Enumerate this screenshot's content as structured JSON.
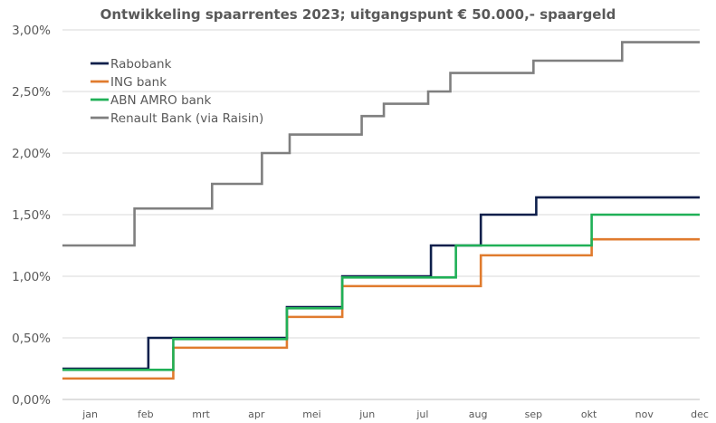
{
  "chart_data": {
    "type": "line",
    "title": "Ontwikkeling spaarrentes 2023; uitgangspunt € 50.000,- spaargeld",
    "xlabel": "",
    "ylabel": "",
    "xlim": [
      0,
      11.5
    ],
    "ylim": [
      0,
      3
    ],
    "y_ticks": [
      {
        "value": 0,
        "label": "0,00%"
      },
      {
        "value": 0.5,
        "label": "0,50%"
      },
      {
        "value": 1.0,
        "label": "1,00%"
      },
      {
        "value": 1.5,
        "label": "1,50%"
      },
      {
        "value": 2.0,
        "label": "2,00%"
      },
      {
        "value": 2.5,
        "label": "2,50%"
      },
      {
        "value": 3.0,
        "label": "3,00%"
      }
    ],
    "x_ticks": [
      {
        "value": 0.5,
        "label": "jan"
      },
      {
        "value": 1.5,
        "label": "feb"
      },
      {
        "value": 2.5,
        "label": "mrt"
      },
      {
        "value": 3.5,
        "label": "apr"
      },
      {
        "value": 4.5,
        "label": "mei"
      },
      {
        "value": 5.5,
        "label": "jun"
      },
      {
        "value": 6.5,
        "label": "jul"
      },
      {
        "value": 7.5,
        "label": "aug"
      },
      {
        "value": 8.5,
        "label": "sep"
      },
      {
        "value": 9.5,
        "label": "okt"
      },
      {
        "value": 10.5,
        "label": "nov"
      },
      {
        "value": 11.5,
        "label": "dec"
      }
    ],
    "grid": "horizontal",
    "legend_position": "top-left",
    "series": [
      {
        "name": "Rabobank",
        "color": "#0d1f4b",
        "steps": [
          [
            0,
            0.25
          ],
          [
            1.55,
            0.5
          ],
          [
            4.05,
            0.75
          ],
          [
            5.05,
            1.0
          ],
          [
            6.65,
            1.25
          ],
          [
            7.55,
            1.5
          ],
          [
            8.55,
            1.64
          ],
          [
            11.5,
            1.64
          ]
        ]
      },
      {
        "name": "ING bank",
        "color": "#e07b2e",
        "steps": [
          [
            0,
            0.17
          ],
          [
            2.0,
            0.42
          ],
          [
            4.05,
            0.67
          ],
          [
            5.05,
            0.92
          ],
          [
            7.55,
            1.17
          ],
          [
            9.55,
            1.3
          ],
          [
            11.5,
            1.3
          ]
        ]
      },
      {
        "name": "ABN AMRO bank",
        "color": "#20b057",
        "steps": [
          [
            0,
            0.24
          ],
          [
            2.0,
            0.49
          ],
          [
            4.05,
            0.74
          ],
          [
            5.05,
            0.99
          ],
          [
            7.1,
            1.25
          ],
          [
            9.55,
            1.5
          ],
          [
            11.5,
            1.5
          ]
        ]
      },
      {
        "name": "Renault Bank (via Raisin)",
        "color": "#7f7f7f",
        "steps": [
          [
            0,
            1.25
          ],
          [
            1.3,
            1.55
          ],
          [
            2.7,
            1.75
          ],
          [
            3.6,
            2.0
          ],
          [
            4.1,
            2.15
          ],
          [
            5.4,
            2.3
          ],
          [
            5.8,
            2.4
          ],
          [
            6.6,
            2.5
          ],
          [
            7.0,
            2.65
          ],
          [
            8.5,
            2.75
          ],
          [
            10.1,
            2.9
          ],
          [
            11.5,
            2.9
          ]
        ]
      }
    ]
  }
}
